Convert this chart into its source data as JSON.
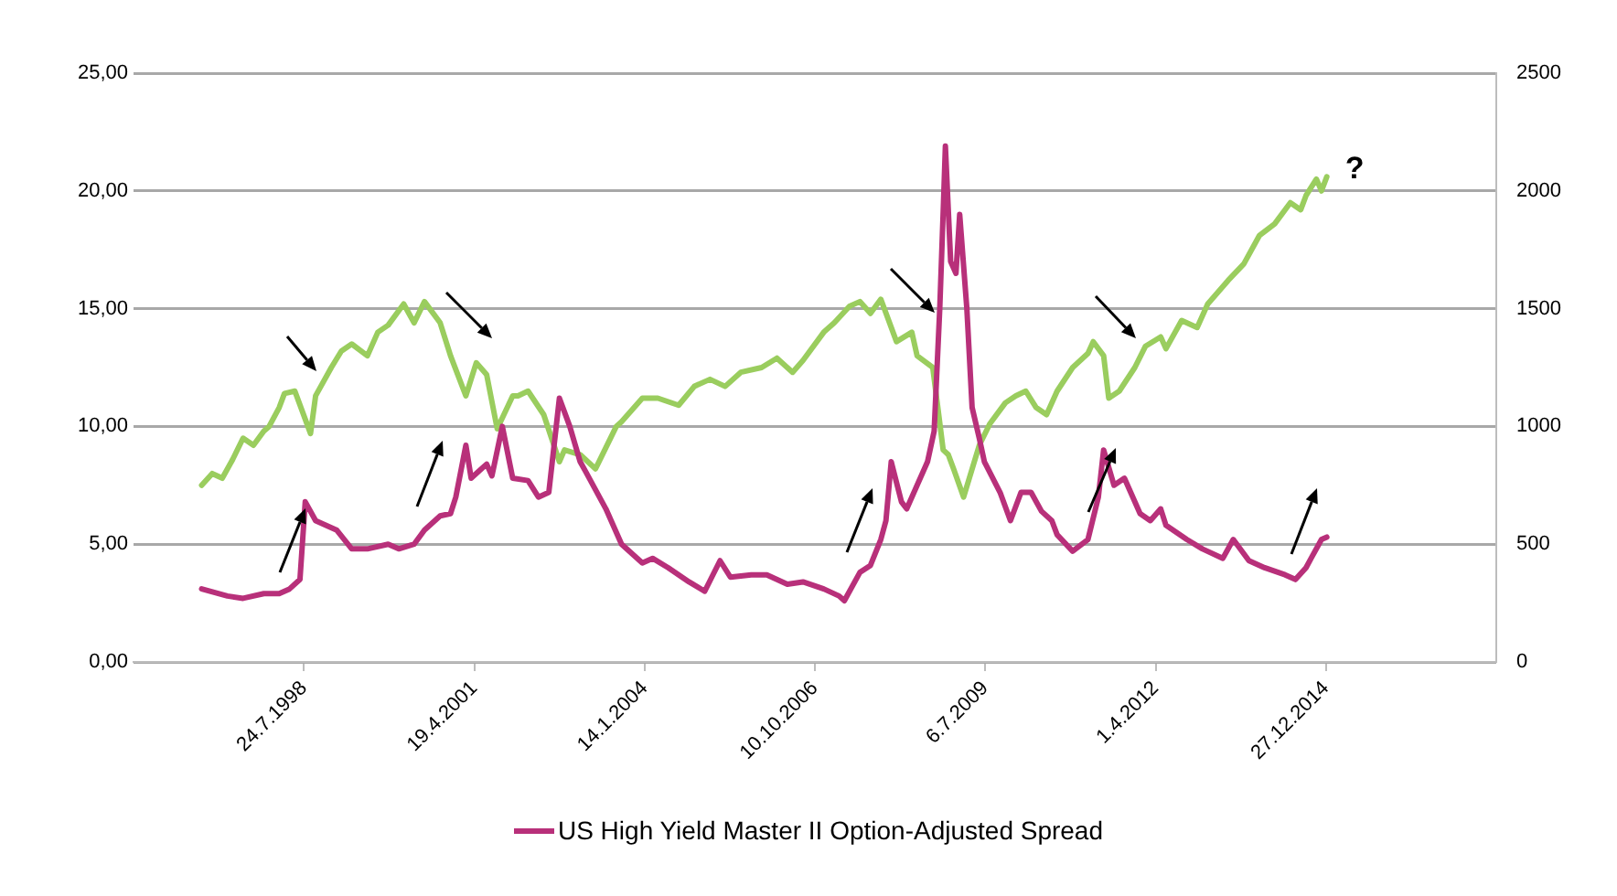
{
  "chart_data": {
    "type": "line",
    "xlim": [
      "1995-10-28",
      "2017-09-22"
    ],
    "xticks": [
      {
        "value": "1998-07-24",
        "label": "24.7.1998"
      },
      {
        "value": "2001-04-19",
        "label": "19.4.2001"
      },
      {
        "value": "2004-01-14",
        "label": "14.1.2004"
      },
      {
        "value": "2006-10-10",
        "label": "10.10.2006"
      },
      {
        "value": "2009-07-06",
        "label": "6.7.2009"
      },
      {
        "value": "2012-04-01",
        "label": "1.4.2012"
      },
      {
        "value": "2014-12-27",
        "label": "27.12.2014"
      }
    ],
    "ylim": [
      0,
      25
    ],
    "yticks": [
      {
        "value": 0,
        "label": "0,00"
      },
      {
        "value": 5,
        "label": "5,00"
      },
      {
        "value": 10,
        "label": "10,00"
      },
      {
        "value": 15,
        "label": "15,00"
      },
      {
        "value": 20,
        "label": "20,00"
      },
      {
        "value": 25,
        "label": "25,00"
      }
    ],
    "y2lim": [
      0,
      2500
    ],
    "y2ticks": [
      0,
      500,
      1000,
      1500,
      2000,
      2500
    ],
    "grid": "y",
    "legend": "bottom",
    "marker": "none",
    "line_style": "solid",
    "annotations": [
      "?"
    ],
    "series": [
      {
        "name": "US High Yield Master II Option-Adjusted Spread",
        "color": "#b8307a",
        "x": [
          "1996-12",
          "1997-05",
          "1997-08",
          "1997-12",
          "1998-03",
          "1998-05",
          "1998-07",
          "1998-08",
          "1998-10",
          "1999-02",
          "1999-05",
          "1999-08",
          "1999-12",
          "2000-02",
          "2000-05",
          "2000-07",
          "2000-10",
          "2000-12",
          "2001-01",
          "2001-03",
          "2001-04",
          "2001-07",
          "2001-08",
          "2001-10",
          "2001-12",
          "2002-03",
          "2002-05",
          "2002-07",
          "2002-09",
          "2002-11",
          "2003-01",
          "2003-02",
          "2003-06",
          "2003-09",
          "2004-01",
          "2004-03",
          "2004-06",
          "2004-10",
          "2005-01",
          "2005-04",
          "2005-06",
          "2005-10",
          "2006-01",
          "2006-05",
          "2006-08",
          "2006-12",
          "2007-03",
          "2007-04",
          "2007-07",
          "2007-09",
          "2007-11",
          "2007-12",
          "2008-01",
          "2008-03",
          "2008-04",
          "2008-06",
          "2008-08",
          "2008-09-09",
          "2008-10-12",
          "2008-11-03",
          "2008-11-14",
          "2008-12-15",
          "2009-01-15",
          "2009-02-06",
          "2009-03-20",
          "2009-04-20",
          "2009-06",
          "2009-07",
          "2009-10",
          "2009-12",
          "2010-02",
          "2010-04",
          "2010-06",
          "2010-08",
          "2010-09",
          "2010-12",
          "2011-03",
          "2011-05",
          "2011-06",
          "2011-08",
          "2011-10",
          "2012-01",
          "2012-03",
          "2012-05",
          "2012-06",
          "2012-10",
          "2013-01",
          "2013-05",
          "2013-07",
          "2013-10",
          "2014-01",
          "2014-05",
          "2014-07",
          "2014-09",
          "2014-10",
          "2014-12",
          "2015-01"
        ],
        "values": [
          3.1,
          2.8,
          2.7,
          2.9,
          2.9,
          3.1,
          3.5,
          6.8,
          6.0,
          5.6,
          4.8,
          4.8,
          5.0,
          4.8,
          5.0,
          5.6,
          6.2,
          6.3,
          7.0,
          9.2,
          7.8,
          8.4,
          7.9,
          10.0,
          7.8,
          7.7,
          7.0,
          7.2,
          11.2,
          10.0,
          8.5,
          8.1,
          6.5,
          5.0,
          4.2,
          4.4,
          4.0,
          3.4,
          3.0,
          4.3,
          3.6,
          3.7,
          3.7,
          3.3,
          3.4,
          3.1,
          2.8,
          2.6,
          3.8,
          4.1,
          5.2,
          6.0,
          8.5,
          6.8,
          6.5,
          7.5,
          8.5,
          9.8,
          15.0,
          19.5,
          21.9,
          17.0,
          16.5,
          19.0,
          15.0,
          10.8,
          9.5,
          8.5,
          7.2,
          6.0,
          7.2,
          7.2,
          6.4,
          6.0,
          5.4,
          4.7,
          5.2,
          7.0,
          9.0,
          7.5,
          7.8,
          6.3,
          6.0,
          6.5,
          5.8,
          5.2,
          4.8,
          4.4,
          5.2,
          4.3,
          4.0,
          3.7,
          3.5,
          4.0,
          4.4,
          5.2,
          5.3
        ]
      },
      {
        "color": "#9acd5e",
        "axis": "y2",
        "x": [
          "1996-12",
          "1997-02",
          "1997-04",
          "1997-06",
          "1997-08",
          "1997-10",
          "1997-12",
          "1998-01",
          "1998-03",
          "1998-04",
          "1998-06",
          "1998-09",
          "1998-10",
          "1999-01",
          "1999-03",
          "1999-05",
          "1999-08",
          "1999-10",
          "1999-12",
          "2000-03",
          "2000-05",
          "2000-07",
          "2000-10",
          "2000-12",
          "2001-03",
          "2001-05",
          "2001-07",
          "2001-09",
          "2001-12",
          "2002-01",
          "2002-03",
          "2002-06",
          "2002-09",
          "2002-10",
          "2003-01",
          "2003-04",
          "2003-08",
          "2003-09",
          "2004-01",
          "2004-04",
          "2004-08",
          "2004-11",
          "2005-02",
          "2005-05",
          "2005-08",
          "2005-12",
          "2006-03",
          "2006-06",
          "2006-08",
          "2006-12",
          "2007-02",
          "2007-05",
          "2007-07",
          "2007-09",
          "2007-11",
          "2008-02",
          "2008-05",
          "2008-06",
          "2008-09",
          "2008-11",
          "2008-12",
          "2009-01",
          "2009-03",
          "2009-06",
          "2009-08",
          "2009-11",
          "2010-01",
          "2010-03",
          "2010-05",
          "2010-07",
          "2010-09",
          "2010-12",
          "2011-03",
          "2011-04",
          "2011-06",
          "2011-07",
          "2011-09",
          "2011-12",
          "2012-02",
          "2012-05",
          "2012-06",
          "2012-09",
          "2012-12",
          "2013-02",
          "2013-06",
          "2013-09",
          "2013-12",
          "2014-03",
          "2014-06",
          "2014-08",
          "2014-09",
          "2014-11",
          "2014-12",
          "2015-01"
        ],
        "values": [
          750,
          800,
          780,
          860,
          950,
          920,
          980,
          1000,
          1080,
          1140,
          1150,
          970,
          1130,
          1250,
          1320,
          1350,
          1300,
          1400,
          1430,
          1520,
          1440,
          1530,
          1440,
          1300,
          1130,
          1270,
          1220,
          990,
          1130,
          1130,
          1150,
          1050,
          850,
          900,
          880,
          820,
          1000,
          1020,
          1120,
          1120,
          1090,
          1170,
          1200,
          1170,
          1230,
          1250,
          1290,
          1230,
          1280,
          1400,
          1440,
          1510,
          1530,
          1480,
          1540,
          1360,
          1400,
          1300,
          1250,
          900,
          880,
          820,
          700,
          920,
          1010,
          1100,
          1130,
          1150,
          1080,
          1050,
          1150,
          1250,
          1310,
          1360,
          1300,
          1120,
          1150,
          1250,
          1340,
          1380,
          1330,
          1450,
          1420,
          1520,
          1620,
          1690,
          1810,
          1860,
          1950,
          1920,
          1980,
          2050,
          2000,
          2060
        ]
      }
    ]
  }
}
